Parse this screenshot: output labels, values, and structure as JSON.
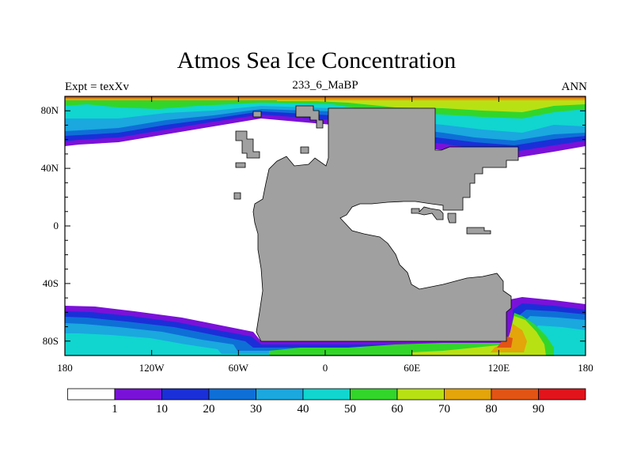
{
  "title": "Atmos Sea Ice Concentration",
  "left_string": "Expt = texXv",
  "center_string": "233_6_MaBP",
  "right_string": "ANN",
  "map": {
    "projection": "cylindrical equidistant",
    "lon_range": [
      -180,
      180
    ],
    "lat_range": [
      -90,
      90
    ],
    "lon_ticks": [
      "180",
      "120W",
      "60W",
      "0",
      "60E",
      "120E",
      "180"
    ],
    "lat_ticks": [
      "80N",
      "40N",
      "0",
      "40S",
      "80S"
    ],
    "land_color": "#a0a0a0",
    "ocean_no_ice_color": "#ffffff"
  },
  "colorbar": {
    "levels": [
      "1",
      "10",
      "20",
      "30",
      "40",
      "50",
      "60",
      "70",
      "80",
      "90"
    ],
    "colors": [
      "#ffffff",
      "#7a11d9",
      "#1a2fd8",
      "#0e6fd7",
      "#1aa8df",
      "#10d6cf",
      "#32d62a",
      "#b8e114",
      "#e3a50a",
      "#e25413",
      "#e2131b"
    ]
  }
}
